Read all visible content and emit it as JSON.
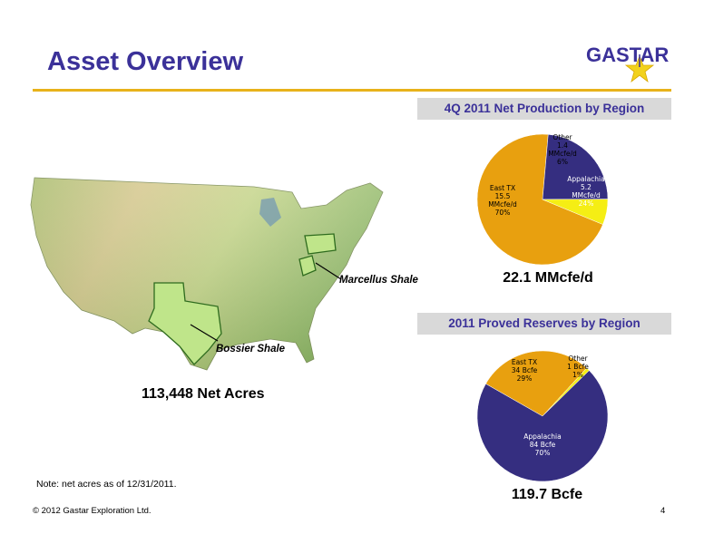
{
  "page": {
    "title": "Asset Overview",
    "logo_text": "GASTAR",
    "note": "Note: net acres as of 12/31/2011.",
    "footer": "© 2012 Gastar Exploration Ltd.",
    "page_number": "4"
  },
  "map": {
    "labels": {
      "marcellus": "Marcellus Shale",
      "bossier": "Bossier Shale"
    },
    "net_acres": "113,448 Net Acres"
  },
  "colors": {
    "title": "#3b3199",
    "rule": "#e8b21a",
    "east_tx": "#e8a00f",
    "appalachia": "#352e80",
    "other": "#f5ee14",
    "header_bg": "#d9d9d9"
  },
  "chart_data": [
    {
      "type": "pie",
      "title": "4Q 2011 Net Production by Region",
      "total_label": "22.1 MMcfe/d",
      "slices": [
        {
          "name": "East TX",
          "value": 15.5,
          "unit": "MMcfe/d",
          "percent": 70,
          "lines": [
            "East TX",
            "15.5",
            "MMcfe/d",
            "70%"
          ]
        },
        {
          "name": "Appalachia",
          "value": 5.2,
          "unit": "MMcfe/d",
          "percent": 24,
          "lines": [
            "Appalachia",
            "5.2",
            "MMcfe/d",
            "24%"
          ]
        },
        {
          "name": "Other",
          "value": 1.4,
          "unit": "MMcfe/d",
          "percent": 6,
          "lines": [
            "Other",
            "1.4",
            "MMcfe/d",
            "6%"
          ]
        }
      ]
    },
    {
      "type": "pie",
      "title": "2011 Proved Reserves by Region",
      "total_label": "119.7 Bcfe",
      "slices": [
        {
          "name": "East TX",
          "value": 34,
          "unit": "Bcfe",
          "percent": 29,
          "lines": [
            "East TX",
            "34 Bcfe",
            "29%"
          ]
        },
        {
          "name": "Other",
          "value": 1,
          "unit": "Bcfe",
          "percent": 1,
          "lines": [
            "Other",
            "1 Bcfe",
            "1%"
          ]
        },
        {
          "name": "Appalachia",
          "value": 84,
          "unit": "Bcfe",
          "percent": 70,
          "lines": [
            "Appalachia",
            "84 Bcfe",
            "70%"
          ]
        }
      ]
    }
  ]
}
